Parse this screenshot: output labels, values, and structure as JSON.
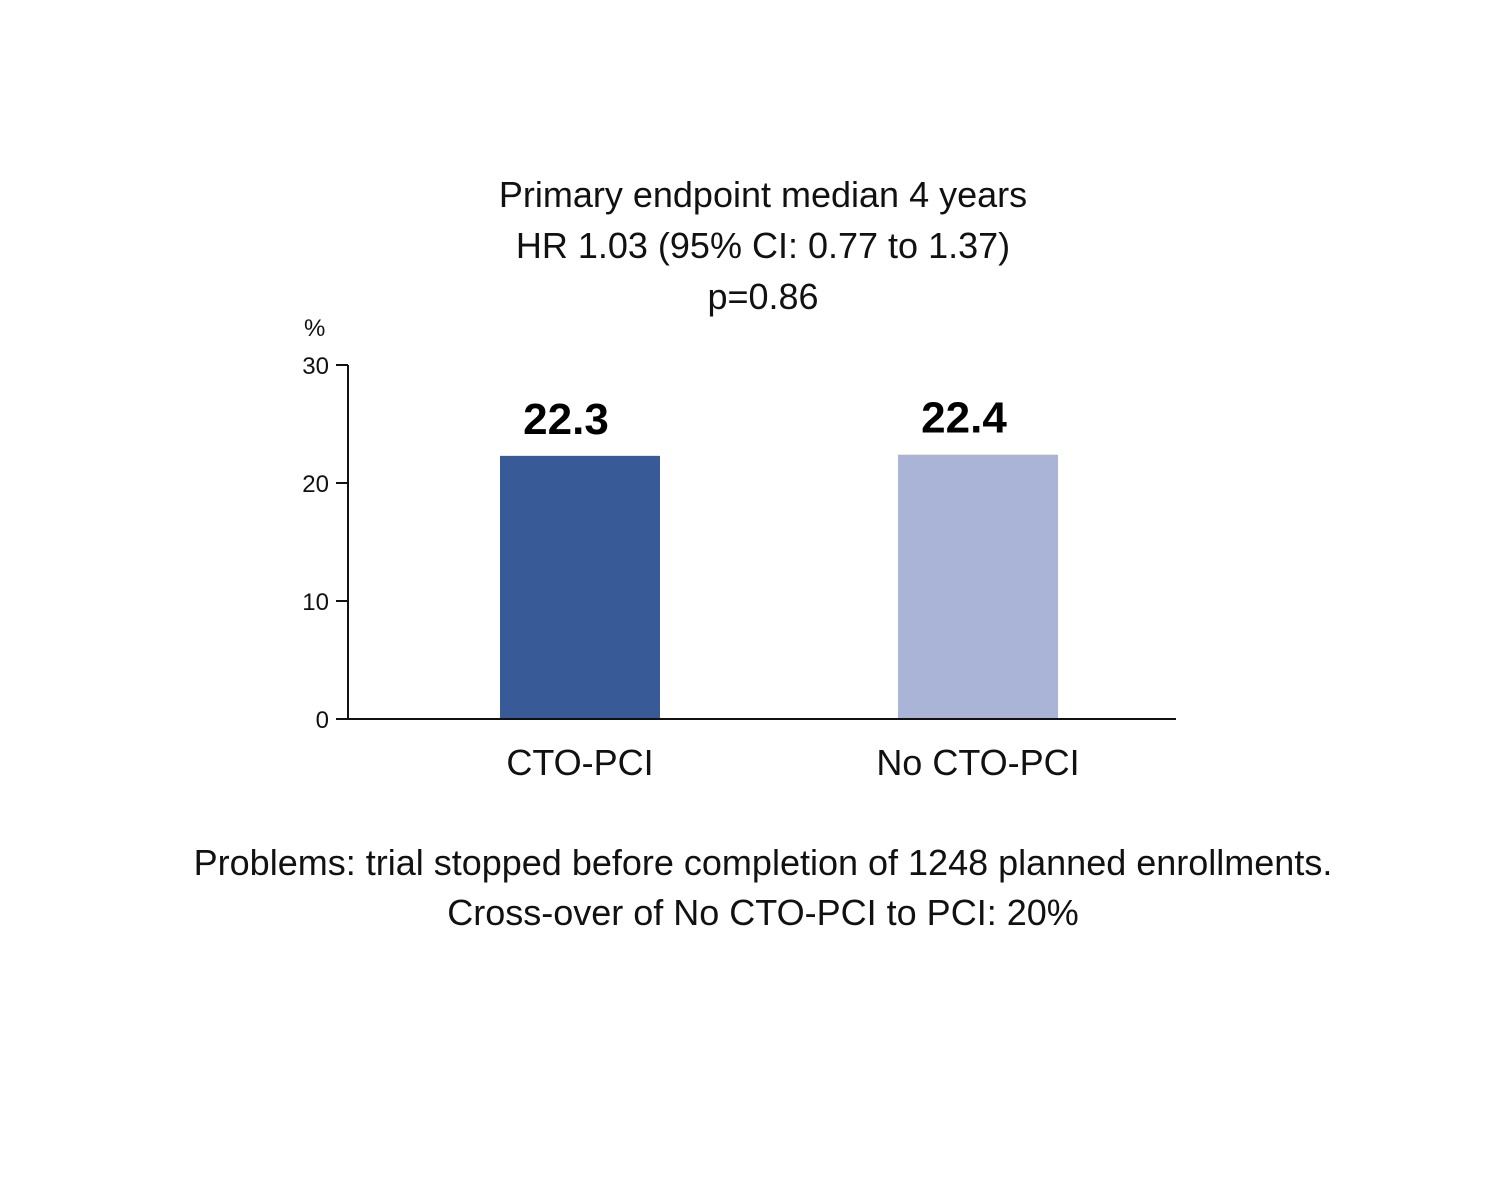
{
  "chart_data": {
    "type": "bar",
    "title_lines": [
      "Primary endpoint median 4 years",
      "HR 1.03 (95% CI: 0.77 to 1.37)",
      "p=0.86"
    ],
    "ylabel": "%",
    "ylim": [
      0,
      30
    ],
    "yticks": [
      0,
      10,
      20,
      30
    ],
    "ytick_labels": [
      "0",
      "10",
      "20",
      "30"
    ],
    "categories": [
      "CTO-PCI",
      "No CTO-PCI"
    ],
    "values": [
      22.3,
      22.4
    ],
    "value_labels": [
      "22.3",
      "22.4"
    ],
    "bar_colors": [
      "#385a96",
      "#aab4d6"
    ],
    "grid": false,
    "legend": "none"
  },
  "notes": [
    "Problems: trial stopped before completion of 1248 planned enrollments.",
    "Cross-over of No CTO-PCI to PCI: 20%"
  ]
}
